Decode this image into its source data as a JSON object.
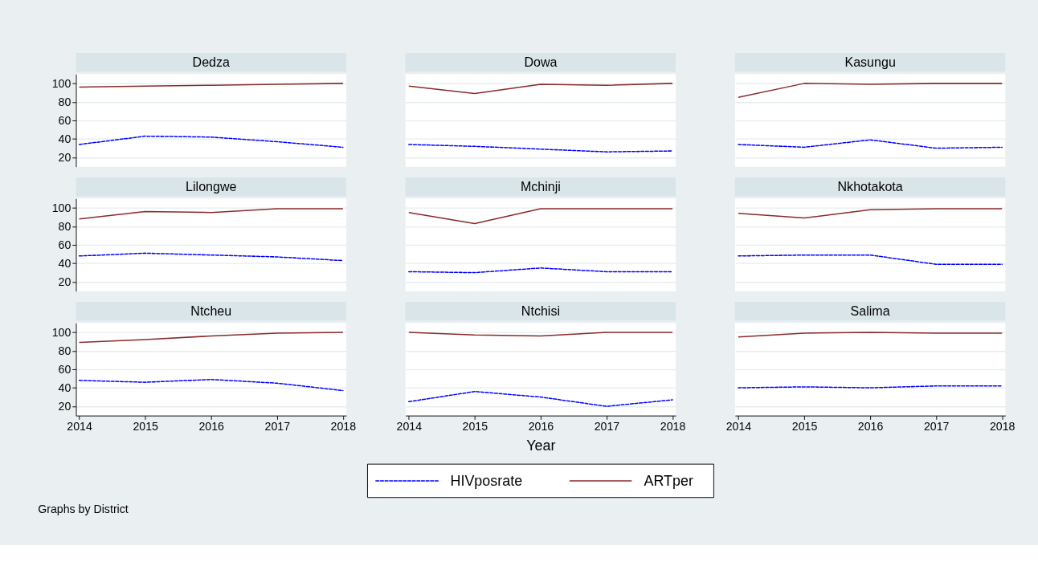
{
  "chart_data": [
    {
      "type": "line",
      "title": "Dedza",
      "x": [
        2014,
        2015,
        2016,
        2017,
        2018
      ],
      "xlim": [
        2013.95,
        2018.05
      ],
      "xticks": [
        2014,
        2015,
        2016,
        2017,
        2018
      ],
      "ylim": [
        10,
        110
      ],
      "yticks": [
        20,
        40,
        60,
        80,
        100
      ],
      "grid": "y",
      "tick_labels": "y",
      "series": [
        {
          "color": "#0000ff",
          "line_style": "dotted",
          "values": [
            34,
            43,
            42,
            37,
            31
          ]
        },
        {
          "color": "#8b2a2a",
          "line_style": "solid",
          "values": [
            96,
            97,
            98,
            99,
            100
          ]
        }
      ]
    },
    {
      "type": "line",
      "title": "Dowa",
      "x": [
        2014,
        2015,
        2016,
        2017,
        2018
      ],
      "xlim": [
        2013.95,
        2018.05
      ],
      "xticks": [
        2014,
        2015,
        2016,
        2017,
        2018
      ],
      "ylim": [
        10,
        110
      ],
      "yticks": [
        20,
        40,
        60,
        80,
        100
      ],
      "grid": "y",
      "tick_labels": false,
      "series": [
        {
          "color": "#0000ff",
          "line_style": "dotted",
          "values": [
            34,
            32,
            29,
            26,
            27
          ]
        },
        {
          "color": "#8b2a2a",
          "line_style": "solid",
          "values": [
            97,
            89,
            99,
            98,
            100
          ]
        }
      ]
    },
    {
      "type": "line",
      "title": "Kasungu",
      "x": [
        2014,
        2015,
        2016,
        2017,
        2018
      ],
      "xlim": [
        2013.95,
        2018.05
      ],
      "xticks": [
        2014,
        2015,
        2016,
        2017,
        2018
      ],
      "ylim": [
        10,
        110
      ],
      "yticks": [
        20,
        40,
        60,
        80,
        100
      ],
      "grid": "y",
      "tick_labels": false,
      "series": [
        {
          "color": "#0000ff",
          "line_style": "dotted",
          "values": [
            34,
            31,
            39,
            30,
            31
          ]
        },
        {
          "color": "#8b2a2a",
          "line_style": "solid",
          "values": [
            85,
            100,
            99,
            100,
            100
          ]
        }
      ]
    },
    {
      "type": "line",
      "title": "Lilongwe",
      "x": [
        2014,
        2015,
        2016,
        2017,
        2018
      ],
      "xlim": [
        2013.95,
        2018.05
      ],
      "xticks": [
        2014,
        2015,
        2016,
        2017,
        2018
      ],
      "ylim": [
        10,
        110
      ],
      "yticks": [
        20,
        40,
        60,
        80,
        100
      ],
      "grid": "y",
      "tick_labels": "y",
      "series": [
        {
          "color": "#0000ff",
          "line_style": "dotted",
          "values": [
            48,
            51,
            49,
            47,
            43
          ]
        },
        {
          "color": "#8b2a2a",
          "line_style": "solid",
          "values": [
            88,
            96,
            95,
            99,
            99
          ]
        }
      ]
    },
    {
      "type": "line",
      "title": "Mchinji",
      "x": [
        2014,
        2015,
        2016,
        2017,
        2018
      ],
      "xlim": [
        2013.95,
        2018.05
      ],
      "xticks": [
        2014,
        2015,
        2016,
        2017,
        2018
      ],
      "ylim": [
        10,
        110
      ],
      "yticks": [
        20,
        40,
        60,
        80,
        100
      ],
      "grid": "y",
      "tick_labels": false,
      "series": [
        {
          "color": "#0000ff",
          "line_style": "dotted",
          "values": [
            31,
            30,
            35,
            31,
            31
          ]
        },
        {
          "color": "#8b2a2a",
          "line_style": "solid",
          "values": [
            95,
            83,
            99,
            99,
            99
          ]
        }
      ]
    },
    {
      "type": "line",
      "title": "Nkhotakota",
      "x": [
        2014,
        2015,
        2016,
        2017,
        2018
      ],
      "xlim": [
        2013.95,
        2018.05
      ],
      "xticks": [
        2014,
        2015,
        2016,
        2017,
        2018
      ],
      "ylim": [
        10,
        110
      ],
      "yticks": [
        20,
        40,
        60,
        80,
        100
      ],
      "grid": "y",
      "tick_labels": false,
      "series": [
        {
          "color": "#0000ff",
          "line_style": "dotted",
          "values": [
            48,
            49,
            49,
            39,
            39
          ]
        },
        {
          "color": "#8b2a2a",
          "line_style": "solid",
          "values": [
            94,
            89,
            98,
            99,
            99
          ]
        }
      ]
    },
    {
      "type": "line",
      "title": "Ntcheu",
      "x": [
        2014,
        2015,
        2016,
        2017,
        2018
      ],
      "xlim": [
        2013.95,
        2018.05
      ],
      "xticks": [
        2014,
        2015,
        2016,
        2017,
        2018
      ],
      "ylim": [
        10,
        110
      ],
      "yticks": [
        20,
        40,
        60,
        80,
        100
      ],
      "grid": "y",
      "annotations": [
        "Graphs by District"
      ],
      "series": [
        {
          "color": "#0000ff",
          "line_style": "dotted",
          "values": [
            48,
            46,
            49,
            45,
            37
          ]
        },
        {
          "color": "#8b2a2a",
          "line_style": "solid",
          "values": [
            89,
            92,
            96,
            99,
            100
          ]
        }
      ]
    },
    {
      "type": "line",
      "title": "Ntchisi",
      "xlabel": "Year",
      "legend": "bottom",
      "x": [
        2014,
        2015,
        2016,
        2017,
        2018
      ],
      "xlim": [
        2013.95,
        2018.05
      ],
      "xticks": [
        2014,
        2015,
        2016,
        2017,
        2018
      ],
      "ylim": [
        10,
        110
      ],
      "yticks": [
        20,
        40,
        60,
        80,
        100
      ],
      "grid": "y",
      "tick_labels": "x",
      "series": [
        {
          "name": "HIVposrate",
          "color": "#0000ff",
          "line_style": "dotted",
          "values": [
            25,
            36,
            30,
            20,
            27
          ]
        },
        {
          "name": "ARTper",
          "color": "#8b2a2a",
          "line_style": "solid",
          "values": [
            100,
            97,
            96,
            100,
            100
          ]
        }
      ]
    },
    {
      "type": "line",
      "title": "Salima",
      "x": [
        2014,
        2015,
        2016,
        2017,
        2018
      ],
      "xlim": [
        2013.95,
        2018.05
      ],
      "xticks": [
        2014,
        2015,
        2016,
        2017,
        2018
      ],
      "ylim": [
        10,
        110
      ],
      "yticks": [
        20,
        40,
        60,
        80,
        100
      ],
      "grid": "y",
      "tick_labels": "x",
      "series": [
        {
          "color": "#0000ff",
          "line_style": "dotted",
          "values": [
            40,
            41,
            40,
            42,
            42
          ]
        },
        {
          "color": "#8b2a2a",
          "line_style": "solid",
          "values": [
            95,
            99,
            100,
            99,
            99
          ]
        }
      ]
    }
  ]
}
